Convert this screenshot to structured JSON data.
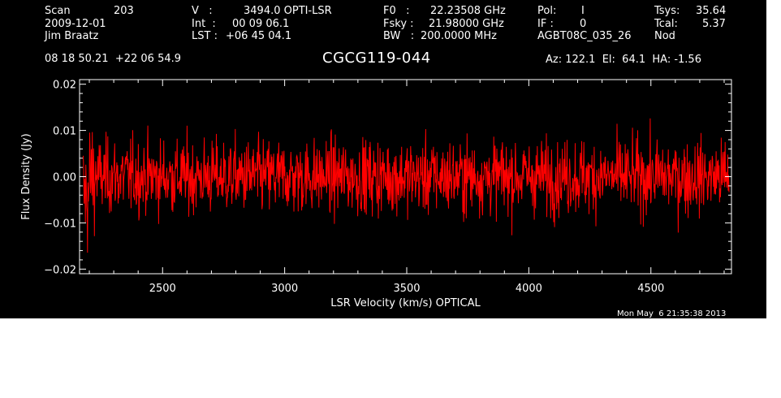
{
  "header": {
    "scan_label": "Scan",
    "scan_value": "203",
    "date": "2009-12-01",
    "observer": "Jim Braatz",
    "v_label": "V   :",
    "v_value": "3494.0 OPTI-LSR",
    "int_label": "Int  :",
    "int_value": "00 09 06.1",
    "lst_label": "LST :",
    "lst_value": "+06 45 04.1",
    "f0_label": "F0   :",
    "f0_value": "22.23508 GHz",
    "fsky_label": "Fsky :",
    "fsky_value": "21.98000 GHz",
    "bw_label": "BW   :",
    "bw_value": "200.0000 MHz",
    "pol_label": "Pol:",
    "pol_value": "I",
    "if_label": "IF :",
    "if_value": "0",
    "project": "AGBT08C_035_26",
    "tsys_label": "Tsys:",
    "tsys_value": "35.64",
    "tcal_label": "Tcal:",
    "tcal_value": "5.37",
    "mode": "Nod",
    "coords": "08 18 50.21  +22 06 54.9",
    "source": "CGCG119-044",
    "pointing": "Az: 122.1  El:  64.1  HA: -1.56",
    "timestamp": "Mon May  6 21:35:38 2013"
  },
  "colors": {
    "background": "#000000",
    "axes": "#ffffff",
    "trace": "#ff0000"
  },
  "chart_data": {
    "type": "line",
    "xlabel": "LSR Velocity (km/s) OPTICAL",
    "ylabel": "Flux Density (Jy)",
    "xlim": [
      2160,
      4830
    ],
    "ylim": [
      -0.021,
      0.021
    ],
    "xticks": [
      2500,
      3000,
      3500,
      4000,
      4500
    ],
    "xtick_labels": [
      "2500",
      "3000",
      "3500",
      "4000",
      "4500"
    ],
    "yticks": [
      -0.02,
      -0.01,
      0.0,
      0.01,
      0.02
    ],
    "ytick_labels": [
      "−0.02",
      "−0.01",
      "0.00",
      "0.01",
      "0.02"
    ],
    "series": [
      {
        "color": "#ff0000",
        "x_start": 2175,
        "x_end": 4820,
        "n_points": 1500,
        "noise_rms_jy": 0.004,
        "mean_jy": 0.0
      }
    ],
    "grid": false,
    "legend": "none"
  }
}
